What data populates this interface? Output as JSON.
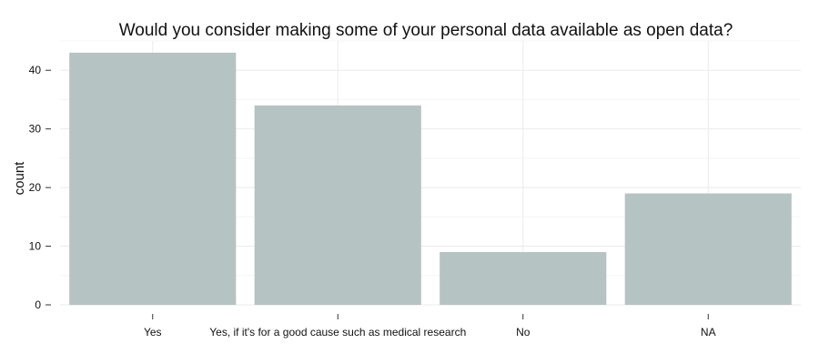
{
  "chart_data": {
    "type": "bar",
    "title": "Would you consider making some of your personal data available as open data?",
    "xlabel": "",
    "ylabel": "count",
    "categories": [
      "Yes",
      "Yes, if it's for a good cause such as medical research",
      "No",
      "NA"
    ],
    "values": [
      43,
      34,
      9,
      19
    ],
    "ylim": [
      0,
      45
    ],
    "yticks": [
      0,
      10,
      20,
      30,
      40
    ],
    "grid": true,
    "legend": "none",
    "bar_color": "#b5c3c2"
  }
}
